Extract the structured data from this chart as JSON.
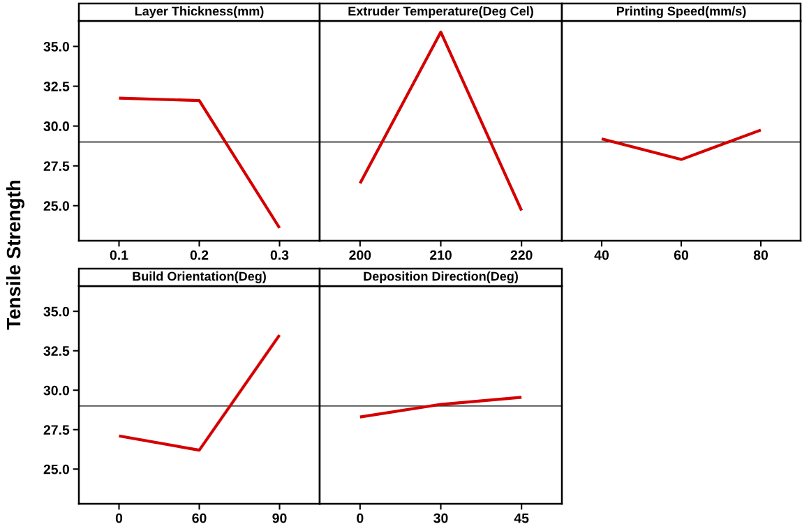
{
  "chart_data": [
    {
      "type": "line",
      "title": "Layer Thickness(mm)",
      "ylabel": "Tensile Strength",
      "categories": [
        "0.1",
        "0.2",
        "0.3"
      ],
      "values": [
        31.75,
        31.6,
        23.6
      ],
      "color": "#d40000",
      "ylim": [
        22.8,
        36.6
      ],
      "yticks": [
        {
          "value": 25,
          "label": "25.0"
        },
        {
          "value": 27.5,
          "label": "27.5"
        },
        {
          "value": 30,
          "label": "30.0"
        },
        {
          "value": 32.5,
          "label": "32.5"
        },
        {
          "value": 35,
          "label": "35.0"
        }
      ],
      "ref_lines": [
        {
          "axis": "y",
          "value": 29.0,
          "color": "#000000"
        }
      ],
      "grid": false,
      "legend": false
    },
    {
      "type": "line",
      "title": "Extruder Temperature(Deg Cel)",
      "categories": [
        "200",
        "210",
        "220"
      ],
      "values": [
        26.4,
        35.9,
        24.7
      ],
      "color": "#d40000",
      "ylim": [
        22.8,
        36.6
      ],
      "tick_labels": "x",
      "ref_lines": [
        {
          "axis": "y",
          "value": 29.0,
          "color": "#000000"
        }
      ],
      "grid": false,
      "legend": false
    },
    {
      "type": "line",
      "title": "Printing Speed(mm/s)",
      "categories": [
        "40",
        "60",
        "80"
      ],
      "values": [
        29.2,
        27.9,
        29.75
      ],
      "color": "#d40000",
      "ylim": [
        22.8,
        36.6
      ],
      "tick_labels": "x",
      "ref_lines": [
        {
          "axis": "y",
          "value": 29.0,
          "color": "#000000"
        }
      ],
      "grid": false,
      "legend": false
    },
    {
      "type": "line",
      "title": "Build Orientation(Deg)",
      "categories": [
        "0",
        "60",
        "90"
      ],
      "values": [
        27.1,
        26.2,
        33.5
      ],
      "color": "#d40000",
      "ylim": [
        22.8,
        36.6
      ],
      "yticks": [
        {
          "value": 25,
          "label": "25.0"
        },
        {
          "value": 27.5,
          "label": "27.5"
        },
        {
          "value": 30,
          "label": "30.0"
        },
        {
          "value": 32.5,
          "label": "32.5"
        },
        {
          "value": 35,
          "label": "35.0"
        }
      ],
      "ref_lines": [
        {
          "axis": "y",
          "value": 29.0,
          "color": "#000000"
        }
      ],
      "grid": false,
      "legend": false
    },
    {
      "type": "line",
      "title": "Deposition Direction(Deg)",
      "categories": [
        "0",
        "30",
        "45"
      ],
      "values": [
        28.3,
        29.1,
        29.55
      ],
      "color": "#d40000",
      "ylim": [
        22.8,
        36.6
      ],
      "tick_labels": "x",
      "ref_lines": [
        {
          "axis": "y",
          "value": 29.0,
          "color": "#000000"
        }
      ],
      "grid": false,
      "legend": false
    }
  ]
}
